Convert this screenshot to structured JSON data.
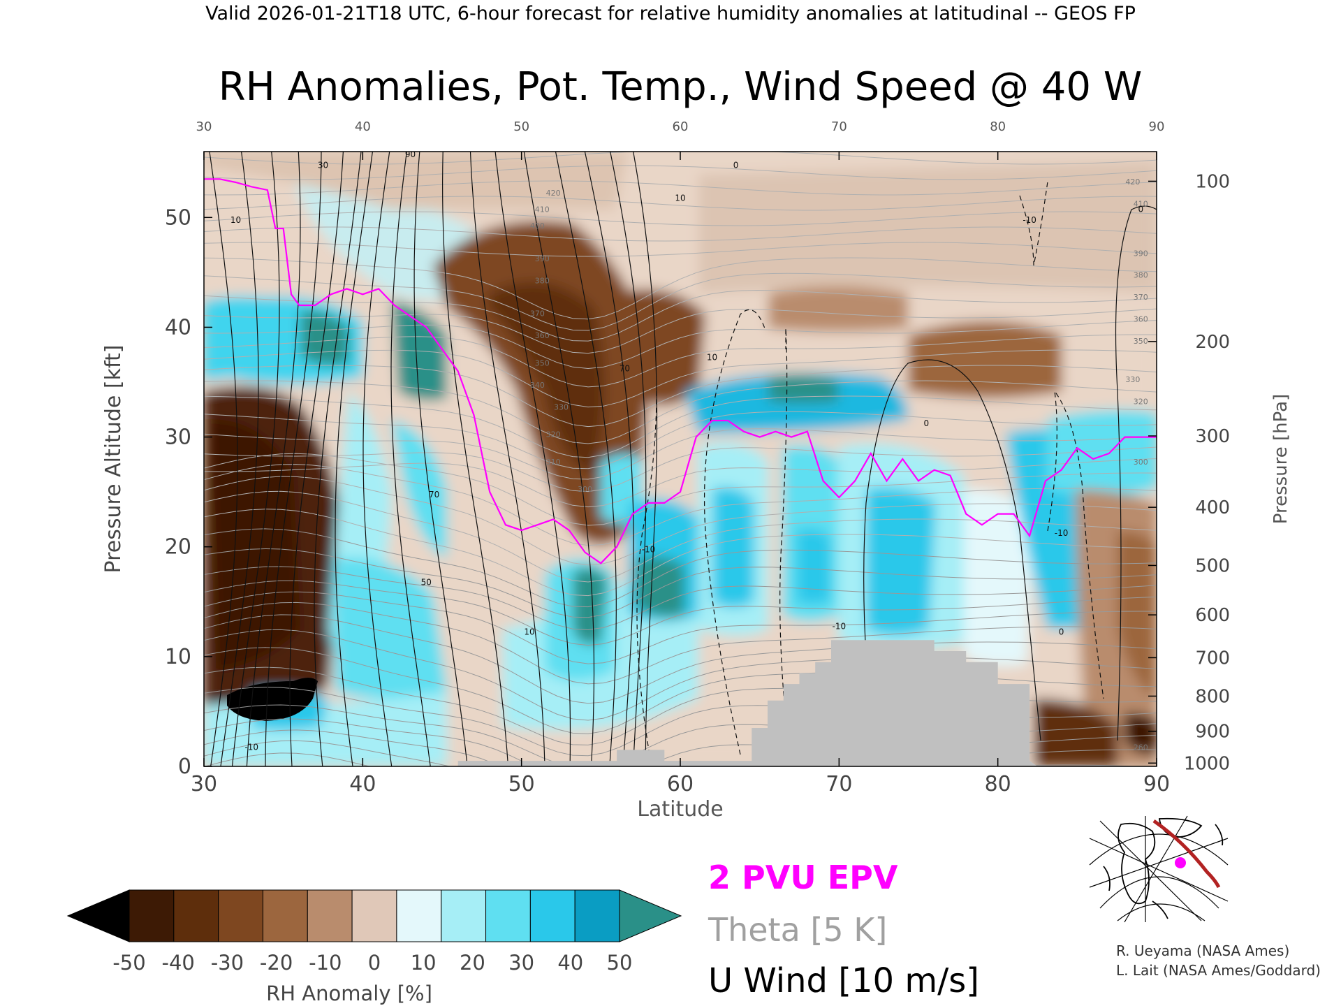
{
  "header": {
    "valid_text": "Valid 2026-01-21T18 UTC, 6-hour forecast for relative humidity anomalies at latitudinal -- GEOS FP"
  },
  "chart_data": {
    "type": "heatmap",
    "title": "RH Anomalies, Pot. Temp., Wind Speed @ 40 W",
    "xlabel": "Latitude",
    "ylabel_left": "Pressure Altitude [kft]",
    "ylabel_right": "Pressure [hPa]",
    "xlim": [
      30,
      90
    ],
    "ylim": [
      0,
      56
    ],
    "x_ticks": [
      "30",
      "40",
      "50",
      "60",
      "70",
      "80",
      "90"
    ],
    "y_ticks": [
      "0",
      "10",
      "20",
      "30",
      "40",
      "50"
    ],
    "pressure_ticks": [
      {
        "label": "100",
        "kft": 53.3
      },
      {
        "label": "200",
        "kft": 38.7
      },
      {
        "label": "300",
        "kft": 30.1
      },
      {
        "label": "400",
        "kft": 23.6
      },
      {
        "label": "500",
        "kft": 18.3
      },
      {
        "label": "600",
        "kft": 13.8
      },
      {
        "label": "700",
        "kft": 9.9
      },
      {
        "label": "800",
        "kft": 6.4
      },
      {
        "label": "900",
        "kft": 3.2
      },
      {
        "label": "1000",
        "kft": 0.3
      }
    ],
    "colorbar": {
      "label": "RH Anomaly [%]",
      "ticks": [
        "-50",
        "-40",
        "-30",
        "-20",
        "-10",
        "0",
        "10",
        "20",
        "30",
        "40",
        "50"
      ],
      "colors": [
        "#3d1a05",
        "#5e2e0c",
        "#7e4720",
        "#9c663e",
        "#b98c6d",
        "#e0c8b8",
        "#e4f8fb",
        "#a6eef6",
        "#5fdff1",
        "#2ac8ea",
        "#0a9dc3"
      ],
      "under_color": "#000000",
      "over_color": "#2a9088"
    },
    "legend": [
      {
        "label": "2 PVU EPV",
        "color": "#ff00ff"
      },
      {
        "label": "Theta [5 K]",
        "color": "#a0a0a0"
      },
      {
        "label": "U Wind [10 m/s]",
        "color": "#000000"
      }
    ],
    "credits": [
      "R. Ueyama (NASA Ames)",
      "L. Lait (NASA Ames/Goddard)"
    ],
    "epv_2pvu": [
      [
        30,
        53.5
      ],
      [
        31,
        53.5
      ],
      [
        32,
        53.2
      ],
      [
        33,
        52.8
      ],
      [
        34,
        52.5
      ],
      [
        34.5,
        49
      ],
      [
        35,
        49
      ],
      [
        35.5,
        43
      ],
      [
        36,
        42
      ],
      [
        37,
        42
      ],
      [
        38,
        43
      ],
      [
        39,
        43.5
      ],
      [
        40,
        43
      ],
      [
        41,
        43.5
      ],
      [
        42,
        42
      ],
      [
        43,
        41
      ],
      [
        44,
        40
      ],
      [
        45,
        38
      ],
      [
        46,
        36
      ],
      [
        47,
        32
      ],
      [
        48,
        25
      ],
      [
        49,
        22
      ],
      [
        50,
        21.5
      ],
      [
        51,
        22
      ],
      [
        52,
        22.5
      ],
      [
        53,
        21.5
      ],
      [
        54,
        19.5
      ],
      [
        55,
        18.5
      ],
      [
        56,
        20
      ],
      [
        57,
        23
      ],
      [
        58,
        24
      ],
      [
        59,
        24
      ],
      [
        60,
        25
      ],
      [
        61,
        30
      ],
      [
        62,
        31.5
      ],
      [
        63,
        31.5
      ],
      [
        64,
        30.5
      ],
      [
        65,
        30
      ],
      [
        66,
        30.5
      ],
      [
        67,
        30
      ],
      [
        68,
        30.5
      ],
      [
        69,
        26
      ],
      [
        70,
        24.5
      ],
      [
        71,
        26
      ],
      [
        72,
        28.5
      ],
      [
        73,
        26
      ],
      [
        74,
        28
      ],
      [
        75,
        26
      ],
      [
        76,
        27
      ],
      [
        77,
        26.5
      ],
      [
        78,
        23
      ],
      [
        79,
        22
      ],
      [
        80,
        23
      ],
      [
        81,
        23
      ],
      [
        82,
        21
      ],
      [
        83,
        26
      ],
      [
        84,
        27
      ],
      [
        85,
        29
      ],
      [
        86,
        28
      ],
      [
        87,
        28.5
      ],
      [
        88,
        30
      ],
      [
        89,
        30
      ],
      [
        90,
        30
      ]
    ],
    "wind_labels": [
      {
        "x": 32,
        "y": 49.5,
        "text": "10"
      },
      {
        "x": 37.5,
        "y": 54.5,
        "text": "30"
      },
      {
        "x": 43,
        "y": 55.5,
        "text": "90"
      },
      {
        "x": 56.5,
        "y": 36,
        "text": "70"
      },
      {
        "x": 60,
        "y": 51.5,
        "text": "10"
      },
      {
        "x": 62,
        "y": 37,
        "text": "10"
      },
      {
        "x": 63.5,
        "y": 54.5,
        "text": "0"
      },
      {
        "x": 75.5,
        "y": 31,
        "text": "0"
      },
      {
        "x": 82,
        "y": 49.5,
        "text": "-10"
      },
      {
        "x": 89,
        "y": 50.5,
        "text": "0"
      },
      {
        "x": 84,
        "y": 21,
        "text": "-10"
      },
      {
        "x": 58,
        "y": 19.5,
        "text": "-10"
      },
      {
        "x": 50.5,
        "y": 12,
        "text": "10"
      },
      {
        "x": 44.5,
        "y": 24.5,
        "text": "70"
      },
      {
        "x": 44,
        "y": 16.5,
        "text": "50"
      },
      {
        "x": 33,
        "y": 1.5,
        "text": "-10"
      },
      {
        "x": 70,
        "y": 12.5,
        "text": "-10"
      },
      {
        "x": 84,
        "y": 12,
        "text": "0"
      }
    ],
    "theta_labels": [
      {
        "x": 52,
        "y": 52,
        "text": "420"
      },
      {
        "x": 51.3,
        "y": 50.5,
        "text": "410"
      },
      {
        "x": 51,
        "y": 49,
        "text": "400"
      },
      {
        "x": 51.3,
        "y": 46,
        "text": "390"
      },
      {
        "x": 51.3,
        "y": 44,
        "text": "380"
      },
      {
        "x": 51,
        "y": 41,
        "text": "370"
      },
      {
        "x": 51.3,
        "y": 39,
        "text": "360"
      },
      {
        "x": 51.3,
        "y": 36.5,
        "text": "350"
      },
      {
        "x": 51,
        "y": 34.5,
        "text": "340"
      },
      {
        "x": 52.5,
        "y": 32.5,
        "text": "330"
      },
      {
        "x": 52,
        "y": 30,
        "text": "320"
      },
      {
        "x": 52,
        "y": 27.5,
        "text": "310"
      },
      {
        "x": 54,
        "y": 25,
        "text": "300"
      },
      {
        "x": 88.5,
        "y": 53,
        "text": "420"
      },
      {
        "x": 89,
        "y": 51,
        "text": "410"
      },
      {
        "x": 89,
        "y": 46.5,
        "text": "390"
      },
      {
        "x": 89,
        "y": 44.5,
        "text": "380"
      },
      {
        "x": 89,
        "y": 42.5,
        "text": "370"
      },
      {
        "x": 89,
        "y": 40.5,
        "text": "360"
      },
      {
        "x": 89,
        "y": 38.5,
        "text": "350"
      },
      {
        "x": 88.5,
        "y": 35,
        "text": "330"
      },
      {
        "x": 89,
        "y": 33,
        "text": "320"
      },
      {
        "x": 89,
        "y": 27.5,
        "text": "300"
      },
      {
        "x": 89,
        "y": 1.5,
        "text": "260"
      }
    ]
  }
}
